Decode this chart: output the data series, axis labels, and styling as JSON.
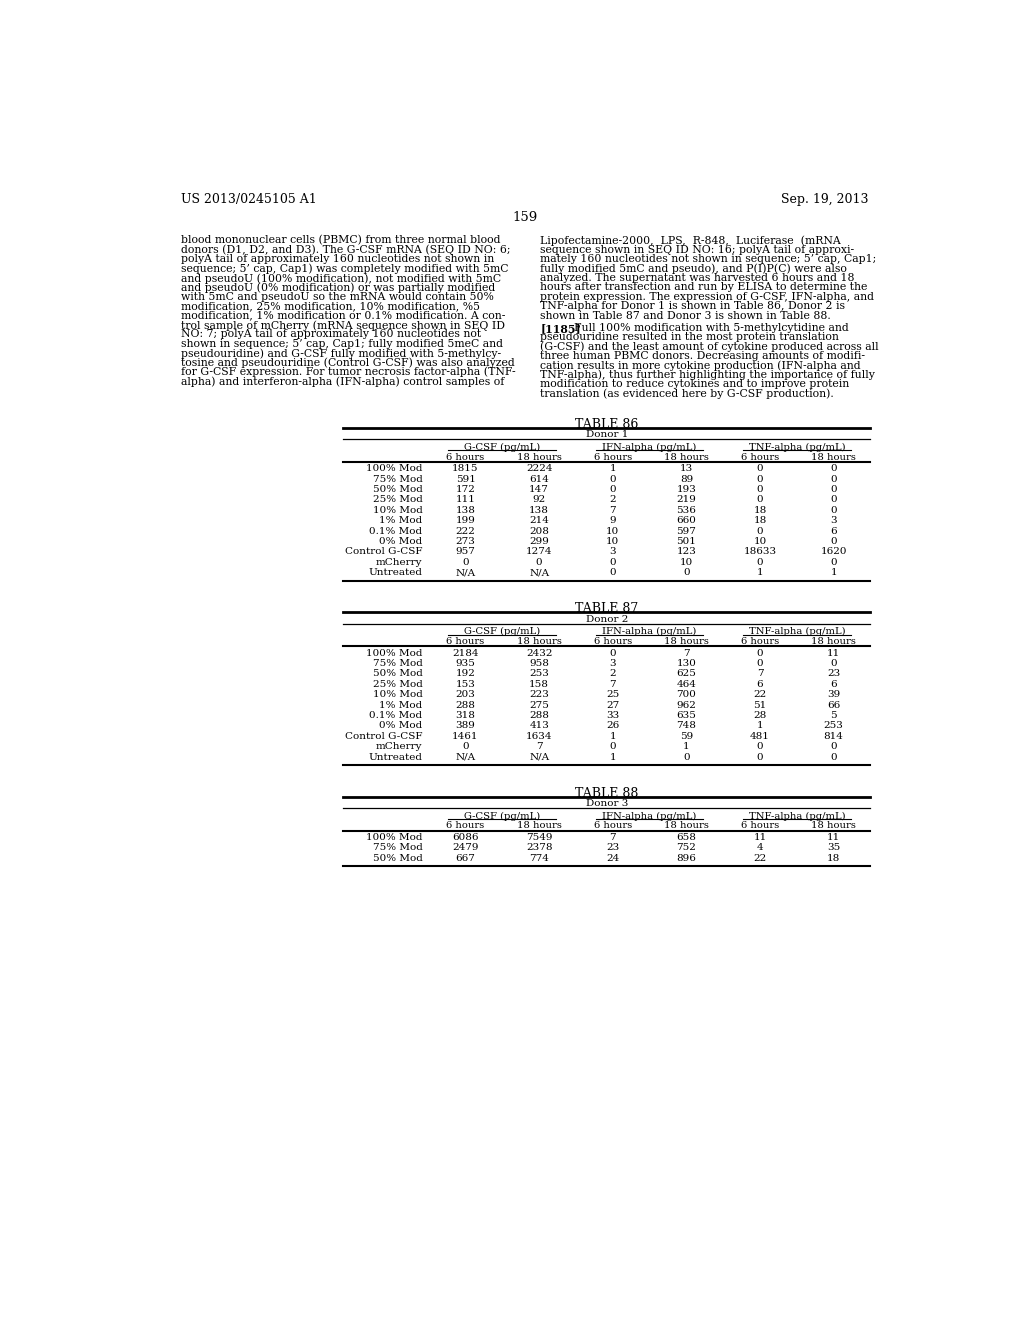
{
  "header_left": "US 2013/0245105 A1",
  "header_right": "Sep. 19, 2013",
  "page_number": "159",
  "left_col_text_lines": [
    "blood mononuclear cells (PBMC) from three normal blood",
    "donors (D1, D2, and D3). The G-CSF mRNA (SEQ ID NO: 6;",
    "polyA tail of approximately 160 nucleotides not shown in",
    "sequence; 5’ cap, Cap1) was completely modified with 5mC",
    "and pseudoU (100% modification), not modified with 5mC",
    "and pseudoU (0% modification) or was partially modified",
    "with 5mC and pseudoU so the mRNA would contain 50%",
    "modification, 25% modification, 10% modification, %5",
    "modification, 1% modification or 0.1% modification. A con-",
    "trol sample of mCherry (mRNA sequence shown in SEQ ID",
    "NO: 7; polyA tail of approximately 160 nucleotides not",
    "shown in sequence; 5’ cap, Cap1; fully modified 5meC and",
    "pseudouridine) and G-CSF fully modified with 5-methylcy-",
    "tosine and pseudouridine (Control G-CSF) was also analyzed",
    "for G-CSF expression. For tumor necrosis factor-alpha (TNF-",
    "alpha) and interferon-alpha (IFN-alpha) control samples of"
  ],
  "right_col_text_lines": [
    "Lipofectamine-2000,  LPS,  R-848,  Luciferase  (mRNA",
    "sequence shown in SEQ ID NO: 16; polyA tail of approxi-",
    "mately 160 nucleotides not shown in sequence; 5’ cap, Cap1;",
    "fully modified 5mC and pseudo), and P(I)P(C) were also",
    "analyzed. The supernatant was harvested 6 hours and 18",
    "hours after transfection and run by ELISA to determine the",
    "protein expression. The expression of G-CSF, IFN-alpha, and",
    "TNF-alpha for Donor 1 is shown in Table 86, Donor 2 is",
    "shown in Table 87 and Donor 3 is shown in Table 88."
  ],
  "right_col_para2_lines": [
    "[1185]  Full 100% modification with 5-methylcytidine and",
    "pseudouridine resulted in the most protein translation",
    "(G-CSF) and the least amount of cytokine produced across all",
    "three human PBMC donors. Decreasing amounts of modifi-",
    "cation results in more cytokine production (IFN-alpha and",
    "TNF-alpha), thus further highlighting the importance of fully",
    "modification to reduce cytokines and to improve protein",
    "translation (as evidenced here by G-CSF production)."
  ],
  "table86_title": "TABLE 86",
  "table86_donor": "Donor 1",
  "table87_title": "TABLE 87",
  "table87_donor": "Donor 2",
  "table88_title": "TABLE 88",
  "table88_donor": "Donor 3",
  "table86_rows": [
    [
      "100% Mod",
      "1815",
      "2224",
      "1",
      "13",
      "0",
      "0"
    ],
    [
      "75% Mod",
      "591",
      "614",
      "0",
      "89",
      "0",
      "0"
    ],
    [
      "50% Mod",
      "172",
      "147",
      "0",
      "193",
      "0",
      "0"
    ],
    [
      "25% Mod",
      "111",
      "92",
      "2",
      "219",
      "0",
      "0"
    ],
    [
      "10% Mod",
      "138",
      "138",
      "7",
      "536",
      "18",
      "0"
    ],
    [
      "1% Mod",
      "199",
      "214",
      "9",
      "660",
      "18",
      "3"
    ],
    [
      "0.1% Mod",
      "222",
      "208",
      "10",
      "597",
      "0",
      "6"
    ],
    [
      "0% Mod",
      "273",
      "299",
      "10",
      "501",
      "10",
      "0"
    ],
    [
      "Control G-CSF",
      "957",
      "1274",
      "3",
      "123",
      "18633",
      "1620"
    ],
    [
      "mCherry",
      "0",
      "0",
      "0",
      "10",
      "0",
      "0"
    ],
    [
      "Untreated",
      "N/A",
      "N/A",
      "0",
      "0",
      "1",
      "1"
    ]
  ],
  "table87_rows": [
    [
      "100% Mod",
      "2184",
      "2432",
      "0",
      "7",
      "0",
      "11"
    ],
    [
      "75% Mod",
      "935",
      "958",
      "3",
      "130",
      "0",
      "0"
    ],
    [
      "50% Mod",
      "192",
      "253",
      "2",
      "625",
      "7",
      "23"
    ],
    [
      "25% Mod",
      "153",
      "158",
      "7",
      "464",
      "6",
      "6"
    ],
    [
      "10% Mod",
      "203",
      "223",
      "25",
      "700",
      "22",
      "39"
    ],
    [
      "1% Mod",
      "288",
      "275",
      "27",
      "962",
      "51",
      "66"
    ],
    [
      "0.1% Mod",
      "318",
      "288",
      "33",
      "635",
      "28",
      "5"
    ],
    [
      "0% Mod",
      "389",
      "413",
      "26",
      "748",
      "1",
      "253"
    ],
    [
      "Control G-CSF",
      "1461",
      "1634",
      "1",
      "59",
      "481",
      "814"
    ],
    [
      "mCherry",
      "0",
      "7",
      "0",
      "1",
      "0",
      "0"
    ],
    [
      "Untreated",
      "N/A",
      "N/A",
      "1",
      "0",
      "0",
      "0"
    ]
  ],
  "table88_rows": [
    [
      "100% Mod",
      "6086",
      "7549",
      "7",
      "658",
      "11",
      "11"
    ],
    [
      "75% Mod",
      "2479",
      "2378",
      "23",
      "752",
      "4",
      "35"
    ],
    [
      "50% Mod",
      "667",
      "774",
      "24",
      "896",
      "22",
      "18"
    ]
  ],
  "bg_color": "#ffffff",
  "text_color": "#000000",
  "font_size_body": 7.8,
  "font_size_table_data": 7.5,
  "font_size_table_header": 7.2,
  "font_size_header": 9.0,
  "font_size_page_num": 9.5,
  "font_size_table_title": 9.0
}
